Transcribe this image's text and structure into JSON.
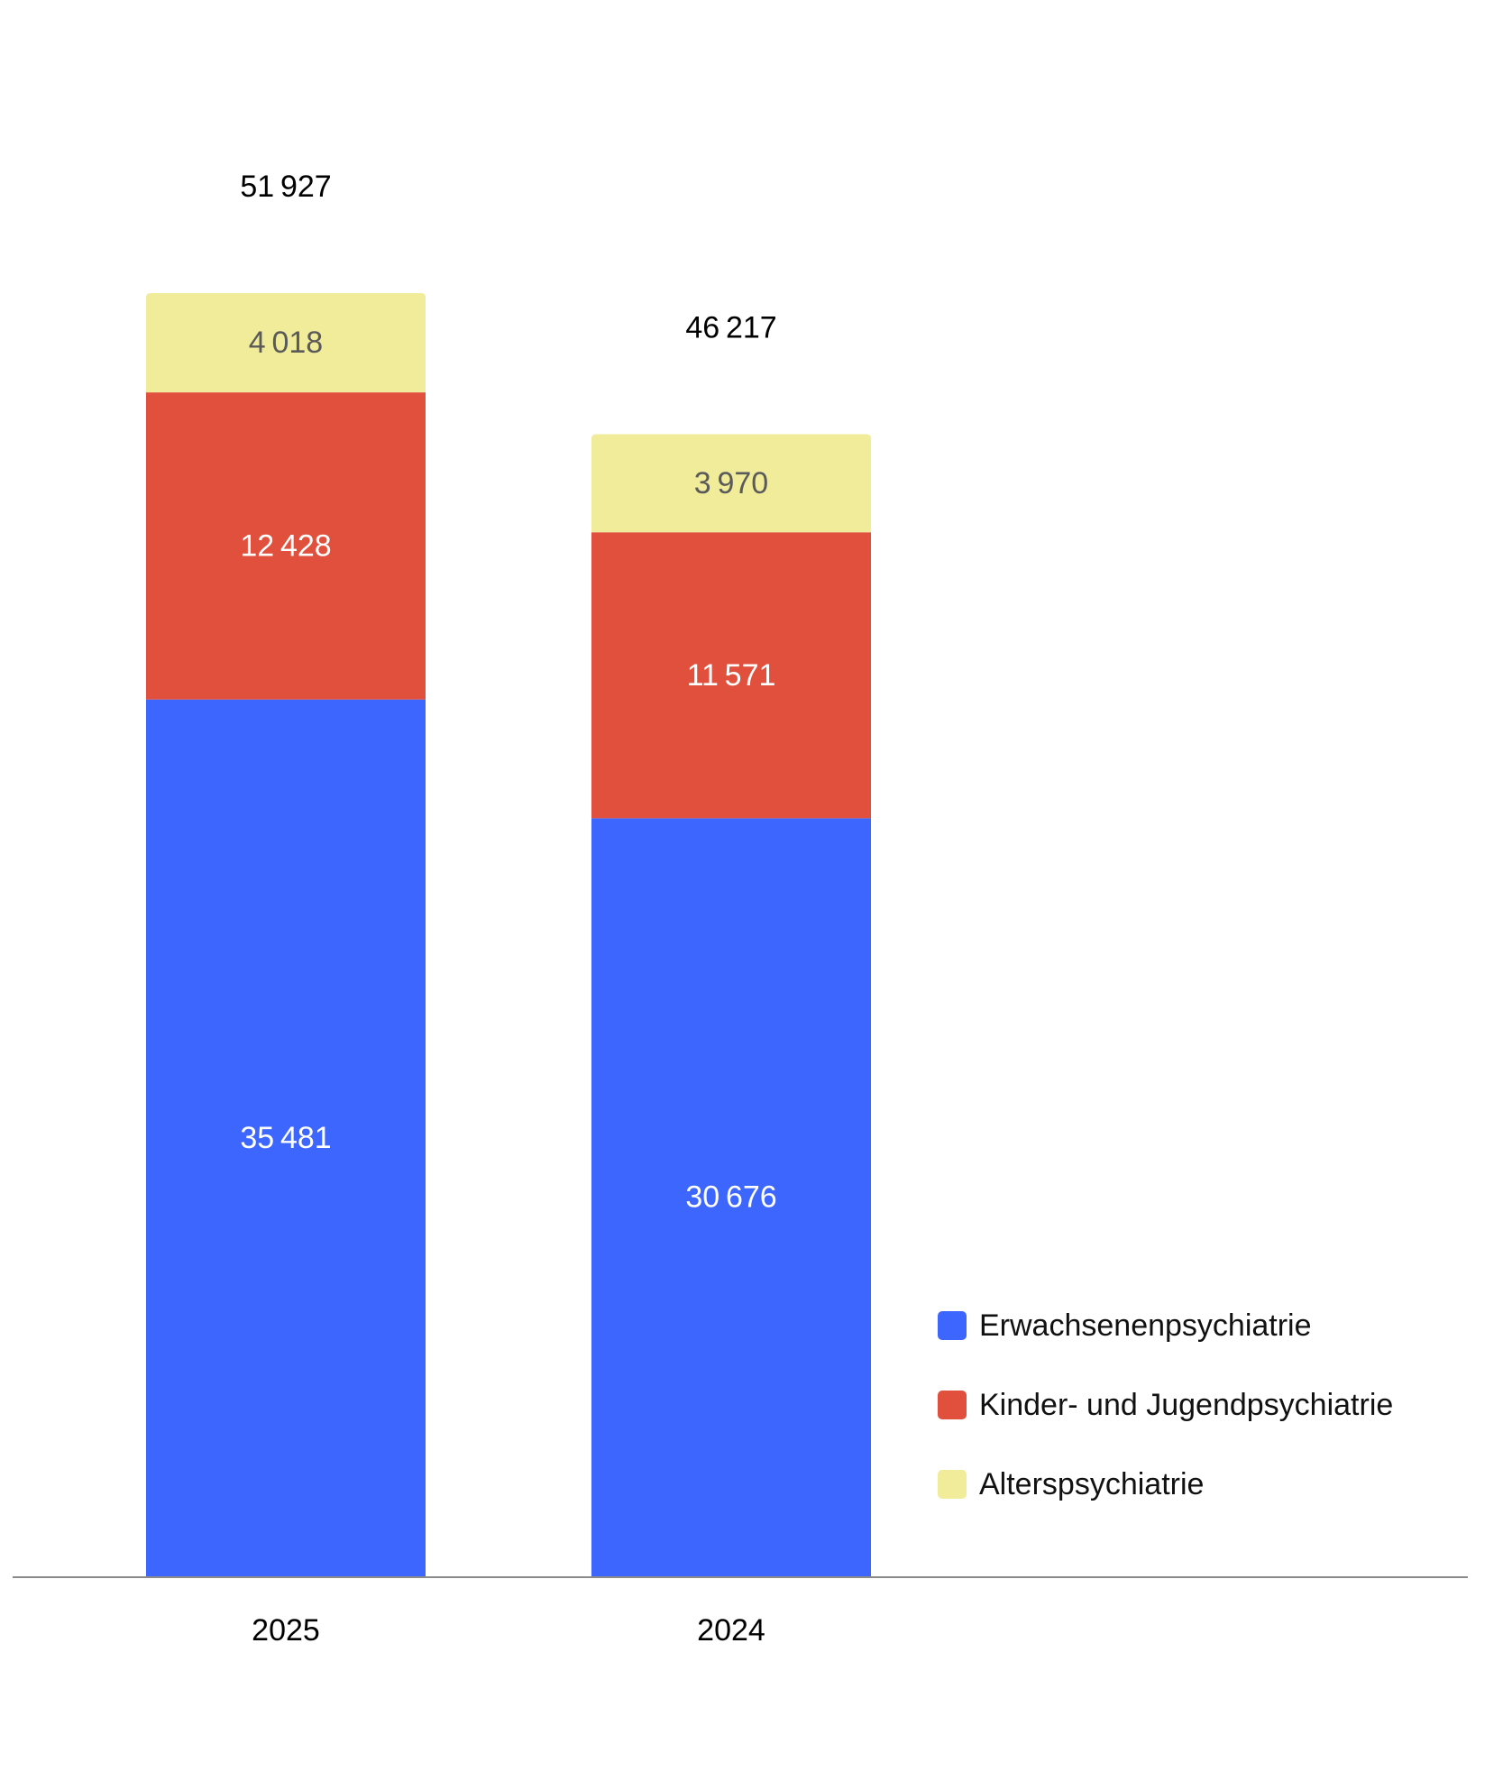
{
  "chart_data": {
    "type": "bar",
    "stacked": true,
    "categories": [
      "2025",
      "2024"
    ],
    "totals": [
      "51927",
      "46217"
    ],
    "series": [
      {
        "name": "Erwachsenenpsychiatrie",
        "color": "#3d66ff",
        "label_color": "#ffffff",
        "values": [
          35481,
          30676
        ],
        "labels": [
          "35481",
          "30676"
        ]
      },
      {
        "name": "Kinder- und Jugendpsychiatrie",
        "color": "#e0503c",
        "label_color": "#ffffff",
        "values": [
          12428,
          11571
        ],
        "labels": [
          "12428",
          "11571"
        ]
      },
      {
        "name": "Alterspsychiatrie",
        "color": "#f0ec9a",
        "label_color": "#5a5a5a",
        "values": [
          4018,
          3970
        ],
        "labels": [
          "4018",
          "3970"
        ]
      }
    ],
    "legend_position": "bottom-right",
    "grid": false
  }
}
